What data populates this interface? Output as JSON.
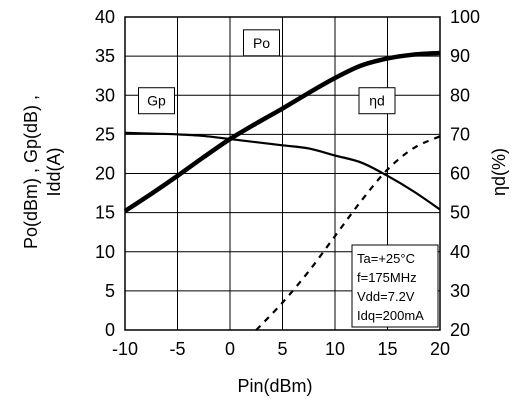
{
  "chart_data": {
    "type": "line",
    "xlabel": "Pin(dBm)",
    "ylabel_left_lines": [
      "Po(dBm) , Gp(dB) ,",
      "Idd(A)"
    ],
    "ylabel_right": "ηd(%)",
    "xlim": [
      -10,
      20
    ],
    "ylim_left": [
      0,
      40
    ],
    "ylim_right": [
      20,
      100
    ],
    "x_ticks": [
      -10,
      -5,
      0,
      5,
      10,
      15,
      20
    ],
    "y_left_ticks": [
      0,
      5,
      10,
      15,
      20,
      25,
      30,
      35,
      40
    ],
    "y_right_ticks": [
      20,
      30,
      40,
      50,
      60,
      70,
      80,
      90,
      100
    ],
    "grid": true,
    "series": [
      {
        "name": "Po",
        "axis": "left",
        "style": "thick-solid",
        "x": [
          -10,
          -7.5,
          -5,
          -2.5,
          0,
          2.5,
          5,
          7.5,
          10,
          12.5,
          15,
          17.5,
          20
        ],
        "y": [
          15.2,
          17.4,
          19.7,
          22.1,
          24.4,
          26.4,
          28.3,
          30.3,
          32.2,
          33.8,
          34.7,
          35.2,
          35.4
        ]
      },
      {
        "name": "Gp",
        "axis": "left",
        "style": "solid",
        "x": [
          -10,
          -7.5,
          -5,
          -2.5,
          0,
          2.5,
          5,
          7.5,
          10,
          12.5,
          15,
          17.5,
          20
        ],
        "y": [
          25.2,
          25.1,
          25.0,
          24.8,
          24.4,
          24.0,
          23.6,
          23.2,
          22.3,
          21.4,
          19.7,
          17.7,
          15.4
        ]
      },
      {
        "name": "ηd",
        "axis": "right",
        "style": "dashed",
        "x": [
          2.5,
          5,
          7.5,
          10,
          12.5,
          15,
          17.5,
          20
        ],
        "y": [
          20,
          27,
          35,
          44,
          53,
          61,
          66.5,
          69.5
        ]
      }
    ],
    "series_labels": [
      {
        "text": "Po",
        "x": 3,
        "y": 36.7
      },
      {
        "text": "Gp",
        "x": -7,
        "y": 29.3
      },
      {
        "text": "ηd",
        "x": 14,
        "y": 29.3
      }
    ],
    "conditions": [
      "Ta=+25°C",
      "f=175MHz",
      "Vdd=7.2V",
      "Idq=200mA"
    ]
  }
}
